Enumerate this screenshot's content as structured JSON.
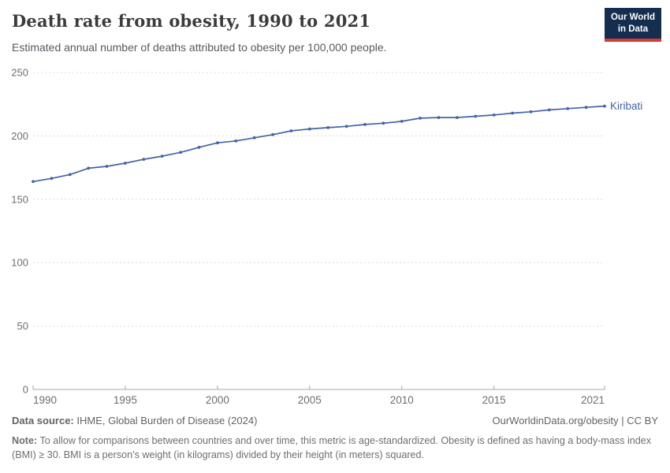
{
  "header": {
    "title": "Death rate from obesity, 1990 to 2021",
    "subtitle": "Estimated annual number of deaths attributed to obesity per 100,000 people.",
    "logo": {
      "line1": "Our World",
      "line2": "in Data",
      "bg_color": "#152d4e",
      "accent_color": "#d93b32"
    }
  },
  "chart_data": {
    "type": "line",
    "title": "Death rate from obesity, 1990 to 2021",
    "xlabel": "",
    "ylabel": "",
    "xlim": [
      1990,
      2021
    ],
    "ylim": [
      0,
      250
    ],
    "x_ticks": [
      1990,
      1995,
      2000,
      2005,
      2010,
      2015,
      2021
    ],
    "y_ticks": [
      0,
      50,
      100,
      150,
      200,
      250
    ],
    "grid": "horizontal-dashed",
    "legend_position": "end-of-line",
    "series": [
      {
        "name": "Kiribati",
        "color": "#4463a5",
        "x": [
          1990,
          1991,
          1992,
          1993,
          1994,
          1995,
          1996,
          1997,
          1998,
          1999,
          2000,
          2001,
          2002,
          2003,
          2004,
          2005,
          2006,
          2007,
          2008,
          2009,
          2010,
          2011,
          2012,
          2013,
          2014,
          2015,
          2016,
          2017,
          2018,
          2019,
          2020,
          2021
        ],
        "values": [
          164,
          166.5,
          169.5,
          174.5,
          176,
          178.5,
          181.5,
          184,
          187,
          191,
          194.5,
          196,
          198.5,
          201,
          204,
          205.5,
          206.5,
          207.5,
          209,
          210,
          211.5,
          214,
          214.5,
          214.5,
          215.5,
          216.5,
          218,
          219,
          220.5,
          221.5,
          222.5,
          223.5
        ]
      }
    ]
  },
  "footer": {
    "data_source_label": "Data source:",
    "data_source": " IHME, Global Burden of Disease (2024)",
    "attribution": "OurWorldinData.org/obesity | CC BY",
    "note_label": "Note:",
    "note": " To allow for comparisons between countries and over time, this metric is age-standardized. Obesity is defined as having a body-mass index (BMI) ≥ 30. BMI is a person's weight (in kilograms) divided by their height (in meters) squared."
  }
}
